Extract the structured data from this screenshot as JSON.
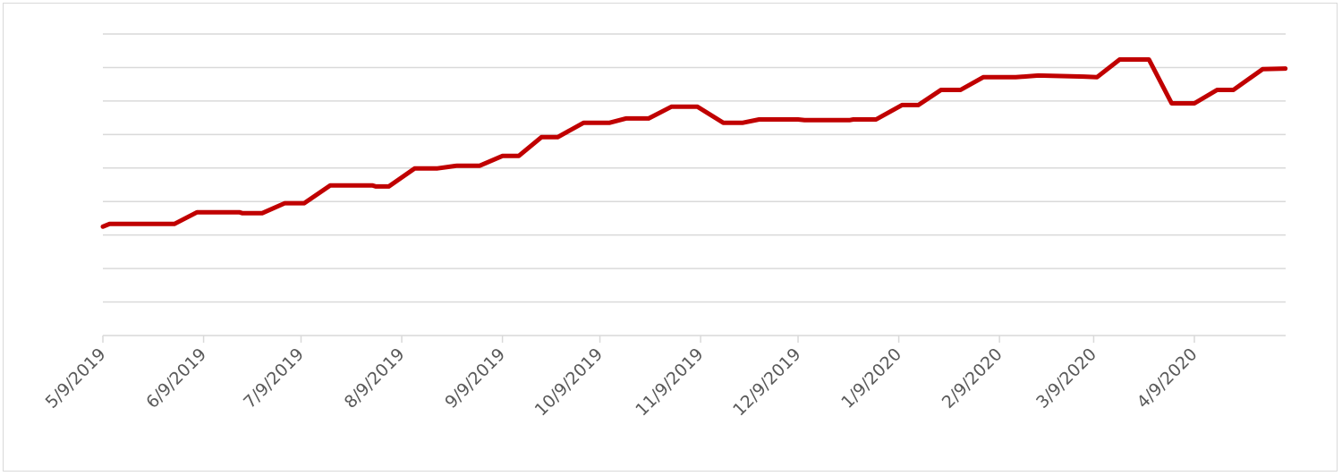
{
  "chart_data": {
    "type": "line",
    "title": "",
    "xlabel": "",
    "ylabel": "",
    "x_tick_labels": [
      "5/9/2019",
      "6/9/2019",
      "7/9/2019",
      "8/9/2019",
      "9/9/2019",
      "10/9/2019",
      "11/9/2019",
      "12/9/2019",
      "1/9/2020",
      "2/9/2020",
      "3/9/2020",
      "4/9/2020"
    ],
    "y_tick_labels_shown": false,
    "ylim": [
      0,
      9
    ],
    "grid": true,
    "gridline_count": 9,
    "series": [
      {
        "color": "#c00000",
        "points": [
          [
            "2019-05-09",
            3.25
          ],
          [
            "2019-05-11",
            3.33
          ],
          [
            "2019-05-31",
            3.33
          ],
          [
            "2019-06-07",
            3.68
          ],
          [
            "2019-06-20",
            3.68
          ],
          [
            "2019-06-21",
            3.65
          ],
          [
            "2019-06-27",
            3.65
          ],
          [
            "2019-07-04",
            3.95
          ],
          [
            "2019-07-10",
            3.95
          ],
          [
            "2019-07-18",
            4.48
          ],
          [
            "2019-07-31",
            4.48
          ],
          [
            "2019-08-01",
            4.45
          ],
          [
            "2019-08-05",
            4.45
          ],
          [
            "2019-08-13",
            4.99
          ],
          [
            "2019-08-20",
            4.99
          ],
          [
            "2019-08-26",
            5.07
          ],
          [
            "2019-09-02",
            5.07
          ],
          [
            "2019-09-09",
            5.36
          ],
          [
            "2019-09-14",
            5.36
          ],
          [
            "2019-09-21",
            5.92
          ],
          [
            "2019-09-26",
            5.92
          ],
          [
            "2019-10-04",
            6.35
          ],
          [
            "2019-10-12",
            6.35
          ],
          [
            "2019-10-17",
            6.48
          ],
          [
            "2019-10-24",
            6.48
          ],
          [
            "2019-10-31",
            6.83
          ],
          [
            "2019-11-08",
            6.83
          ],
          [
            "2019-11-16",
            6.35
          ],
          [
            "2019-11-22",
            6.35
          ],
          [
            "2019-11-27",
            6.45
          ],
          [
            "2019-12-09",
            6.45
          ],
          [
            "2019-12-11",
            6.43
          ],
          [
            "2019-12-25",
            6.43
          ],
          [
            "2019-12-26",
            6.45
          ],
          [
            "2020-01-02",
            6.45
          ],
          [
            "2020-01-10",
            6.88
          ],
          [
            "2020-01-15",
            6.88
          ],
          [
            "2020-01-22",
            7.33
          ],
          [
            "2020-01-28",
            7.33
          ],
          [
            "2020-02-04",
            7.71
          ],
          [
            "2020-02-14",
            7.71
          ],
          [
            "2020-02-21",
            7.76
          ],
          [
            "2020-03-06",
            7.73
          ],
          [
            "2020-03-10",
            7.71
          ],
          [
            "2020-03-17",
            8.24
          ],
          [
            "2020-03-26",
            8.24
          ],
          [
            "2020-04-02",
            6.93
          ],
          [
            "2020-04-09",
            6.93
          ],
          [
            "2020-04-16",
            7.33
          ],
          [
            "2020-04-21",
            7.33
          ],
          [
            "2020-04-30",
            7.95
          ],
          [
            "2020-05-07",
            7.97
          ]
        ]
      }
    ]
  }
}
